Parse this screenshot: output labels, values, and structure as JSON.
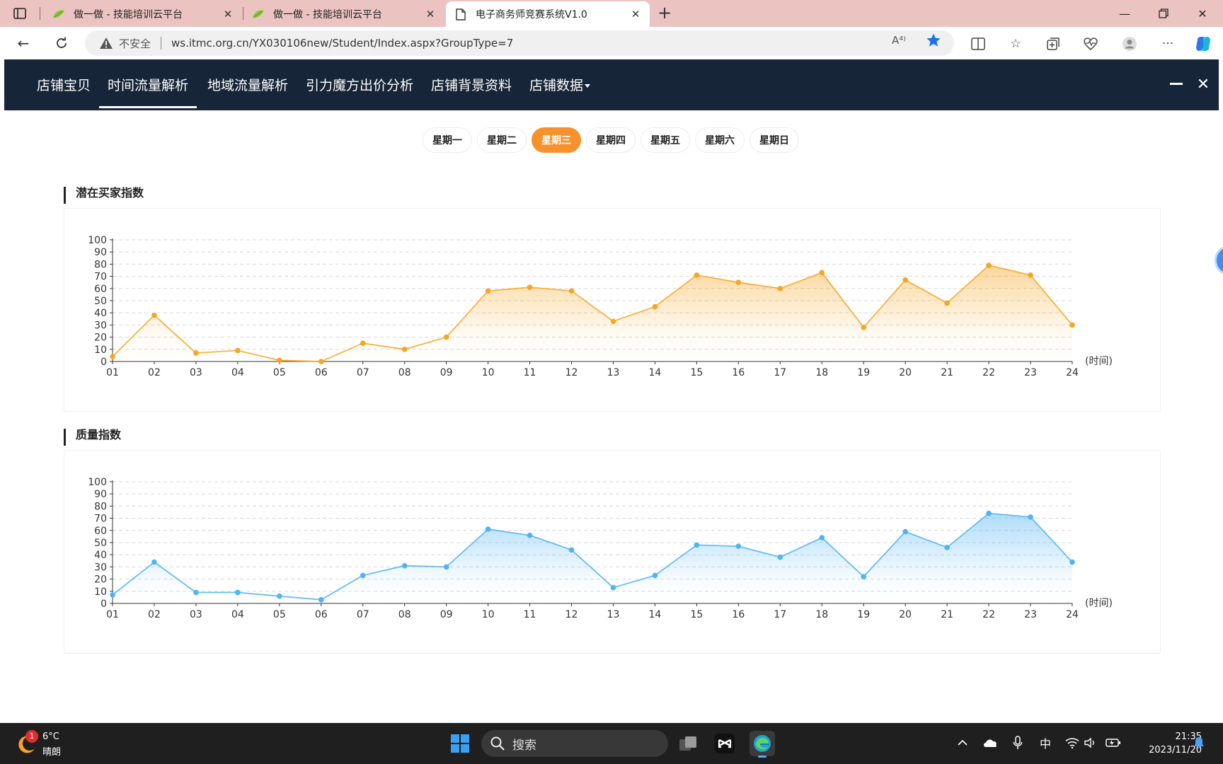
{
  "browser": {
    "tabs": [
      {
        "title": "做一做 - 技能培训云平台"
      },
      {
        "title": "做一做 - 技能培训云平台"
      },
      {
        "title": "电子商务师竞赛系统V1.0"
      }
    ],
    "insecure_label": "不安全",
    "url": "ws.itmc.org.cn/YX030106new/Student/Index.aspx?GroupType=7",
    "read_aloud_label": "A⁴⁾"
  },
  "nav": {
    "items": [
      "店铺宝贝",
      "时间流量解析",
      "地域流量解析",
      "引力魔方出价分析",
      "店铺背景资料",
      "店铺数据"
    ],
    "active_index": 1
  },
  "days": {
    "items": [
      "星期一",
      "星期二",
      "星期三",
      "星期四",
      "星期五",
      "星期六",
      "星期日"
    ],
    "active_index": 2
  },
  "chart_data": [
    {
      "type": "area",
      "title": "潜在买家指数",
      "x": [
        "01",
        "02",
        "03",
        "04",
        "05",
        "06",
        "07",
        "08",
        "09",
        "10",
        "11",
        "12",
        "13",
        "14",
        "15",
        "16",
        "17",
        "18",
        "19",
        "20",
        "21",
        "22",
        "23",
        "24"
      ],
      "values": [
        4,
        38,
        7,
        9,
        1,
        0,
        15,
        10,
        20,
        58,
        61,
        58,
        33,
        45,
        71,
        65,
        60,
        73,
        28,
        67,
        48,
        79,
        71,
        30
      ],
      "xlabel": "(时间)",
      "ylim": [
        0,
        100
      ],
      "yticks": [
        0,
        10,
        20,
        30,
        40,
        50,
        60,
        70,
        80,
        90,
        100
      ],
      "grid": true,
      "color": "#f5a623"
    },
    {
      "type": "area",
      "title": "质量指数",
      "x": [
        "01",
        "02",
        "03",
        "04",
        "05",
        "06",
        "07",
        "08",
        "09",
        "10",
        "11",
        "12",
        "13",
        "14",
        "15",
        "16",
        "17",
        "18",
        "19",
        "20",
        "21",
        "22",
        "23",
        "24"
      ],
      "values": [
        7,
        34,
        9,
        9,
        6,
        3,
        23,
        31,
        30,
        61,
        56,
        44,
        13,
        23,
        48,
        47,
        38,
        54,
        22,
        59,
        46,
        74,
        71,
        34
      ],
      "xlabel": "(时间)",
      "ylim": [
        0,
        100
      ],
      "yticks": [
        0,
        10,
        20,
        30,
        40,
        50,
        60,
        70,
        80,
        90,
        100
      ],
      "grid": true,
      "color": "#4fb3f6"
    }
  ],
  "taskbar": {
    "weather_badge": "1",
    "temperature": "6°C",
    "weather": "晴朗",
    "search_label": "搜索",
    "ime": "中",
    "time": "21:35",
    "date": "2023/11/20"
  }
}
